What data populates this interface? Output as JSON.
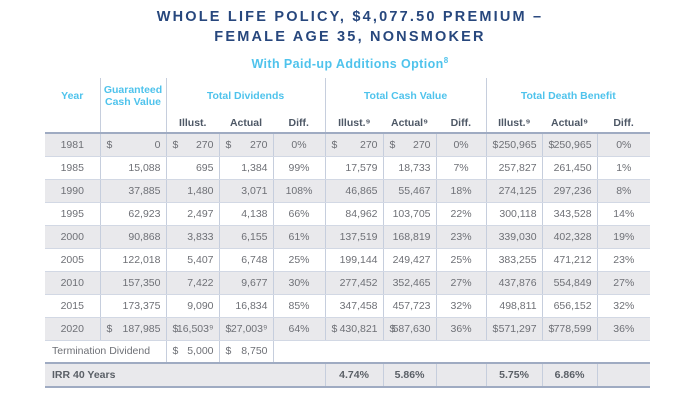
{
  "title": {
    "line1": "WHOLE LIFE POLICY, $4,077.50 PREMIUM –",
    "line2": "FEMALE AGE 35, NONSMOKER"
  },
  "subtitle": {
    "text": "With Paid-up Additions Option",
    "superscript": "8"
  },
  "colors": {
    "navy": "#27477d",
    "cyan": "#4fc3ec",
    "subheader_text": "#4e5866",
    "data_text": "#6e7076",
    "row_stripe": "#e9e9ec",
    "border_light": "#c6cedd",
    "border_heavy": "#9fabc2"
  },
  "table": {
    "currency_symbol": "$",
    "headers": {
      "year": "Year",
      "guaranteed_cash_value": "Guaranteed Cash Value",
      "total_dividends": "Total Dividends",
      "total_cash_value": "Total Cash Value",
      "total_death_benefit": "Total Death Benefit"
    },
    "sub_headers": [
      "Illust.",
      "Actual",
      "Diff.",
      "Illust.⁹",
      "Actual⁹",
      "Diff.",
      "Illust.⁹",
      "Actual⁹",
      "Diff."
    ],
    "rows": [
      {
        "year": "1981",
        "dollar": true,
        "gcv": "0",
        "div_illust": "270",
        "div_actual": "270",
        "div_diff": "0%",
        "tcv_illust": "270",
        "tcv_actual": "270",
        "tcv_diff": "0%",
        "tdb_illust": "250,965",
        "tdb_actual": "250,965",
        "tdb_diff": "0%"
      },
      {
        "year": "1985",
        "dollar": false,
        "gcv": "15,088",
        "div_illust": "695",
        "div_actual": "1,384",
        "div_diff": "99%",
        "tcv_illust": "17,579",
        "tcv_actual": "18,733",
        "tcv_diff": "7%",
        "tdb_illust": "257,827",
        "tdb_actual": "261,450",
        "tdb_diff": "1%"
      },
      {
        "year": "1990",
        "dollar": false,
        "gcv": "37,885",
        "div_illust": "1,480",
        "div_actual": "3,071",
        "div_diff": "108%",
        "tcv_illust": "46,865",
        "tcv_actual": "55,467",
        "tcv_diff": "18%",
        "tdb_illust": "274,125",
        "tdb_actual": "297,236",
        "tdb_diff": "8%"
      },
      {
        "year": "1995",
        "dollar": false,
        "gcv": "62,923",
        "div_illust": "2,497",
        "div_actual": "4,138",
        "div_diff": "66%",
        "tcv_illust": "84,962",
        "tcv_actual": "103,705",
        "tcv_diff": "22%",
        "tdb_illust": "300,118",
        "tdb_actual": "343,528",
        "tdb_diff": "14%"
      },
      {
        "year": "2000",
        "dollar": false,
        "gcv": "90,868",
        "div_illust": "3,833",
        "div_actual": "6,155",
        "div_diff": "61%",
        "tcv_illust": "137,519",
        "tcv_actual": "168,819",
        "tcv_diff": "23%",
        "tdb_illust": "339,030",
        "tdb_actual": "402,328",
        "tdb_diff": "19%"
      },
      {
        "year": "2005",
        "dollar": false,
        "gcv": "122,018",
        "div_illust": "5,407",
        "div_actual": "6,748",
        "div_diff": "25%",
        "tcv_illust": "199,144",
        "tcv_actual": "249,427",
        "tcv_diff": "25%",
        "tdb_illust": "383,255",
        "tdb_actual": "471,212",
        "tdb_diff": "23%"
      },
      {
        "year": "2010",
        "dollar": false,
        "gcv": "157,350",
        "div_illust": "7,422",
        "div_actual": "9,677",
        "div_diff": "30%",
        "tcv_illust": "277,452",
        "tcv_actual": "352,465",
        "tcv_diff": "27%",
        "tdb_illust": "437,876",
        "tdb_actual": "554,849",
        "tdb_diff": "27%"
      },
      {
        "year": "2015",
        "dollar": false,
        "gcv": "173,375",
        "div_illust": "9,090",
        "div_actual": "16,834",
        "div_diff": "85%",
        "tcv_illust": "347,458",
        "tcv_actual": "457,723",
        "tcv_diff": "32%",
        "tdb_illust": "498,811",
        "tdb_actual": "656,152",
        "tdb_diff": "32%"
      },
      {
        "year": "2020",
        "dollar": true,
        "gcv": "187,985",
        "div_illust": "16,503⁹",
        "div_actual": "27,003⁹",
        "div_diff": "64%",
        "tcv_illust": "430,821",
        "tcv_actual": "587,630",
        "tcv_diff": "36%",
        "tdb_illust": "571,297",
        "tdb_actual": "778,599",
        "tdb_diff": "36%"
      }
    ],
    "termination_row": {
      "label": "Termination Dividend",
      "div_illust": "5,000",
      "div_actual": "8,750"
    },
    "irr_row": {
      "label": "IRR 40 Years",
      "tcv_illust": "4.74%",
      "tcv_actual": "5.86%",
      "tcv_diff": "",
      "tdb_illust": "5.75%",
      "tdb_actual": "6.86%",
      "tdb_diff": ""
    }
  }
}
